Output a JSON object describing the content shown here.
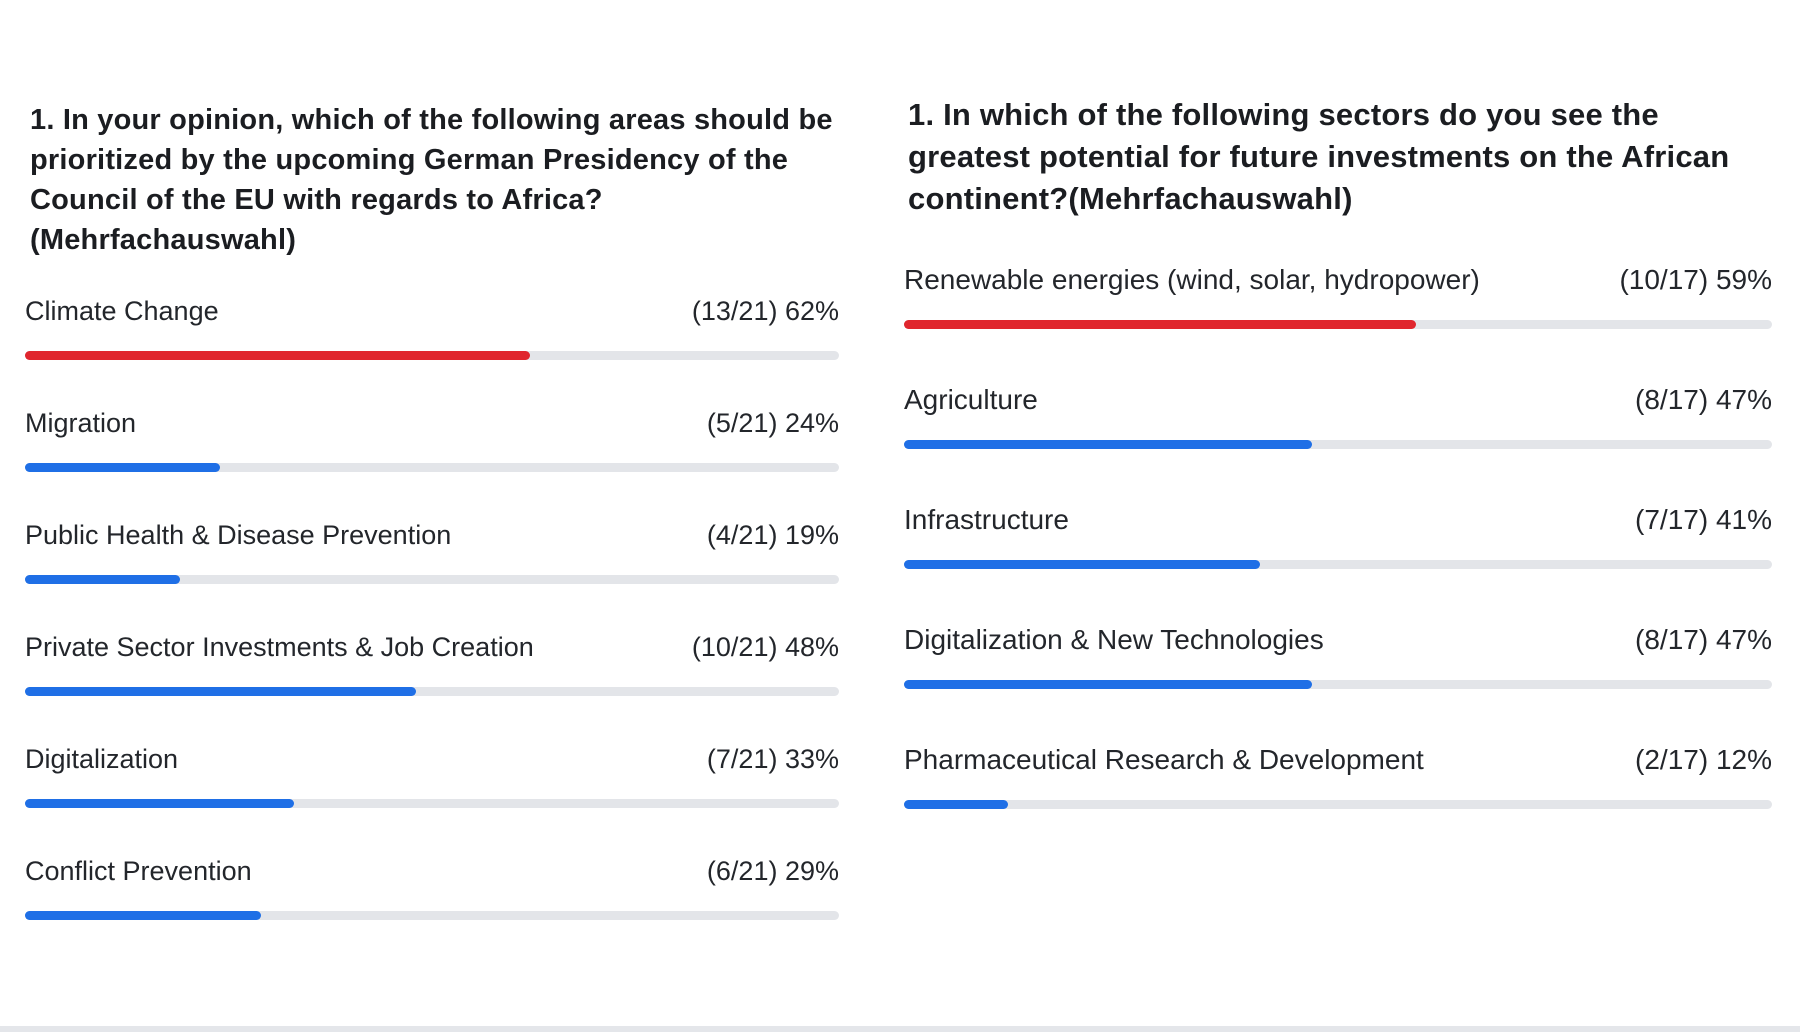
{
  "polls": [
    {
      "question": "1. In your opinion, which of the following areas should be prioritized by the upcoming German Presidency of the Council of the EU with regards to Africa?(Mehrfachauswahl)",
      "options": [
        {
          "label": "Climate Change",
          "result": "(13/21) 62%",
          "fraction": 0.62,
          "leading": true
        },
        {
          "label": "Migration",
          "result": "(5/21) 24%",
          "fraction": 0.24,
          "leading": false
        },
        {
          "label": "Public Health & Disease Prevention",
          "result": "(4/21) 19%",
          "fraction": 0.19,
          "leading": false
        },
        {
          "label": "Private Sector Investments & Job Creation",
          "result": "(10/21) 48%",
          "fraction": 0.48,
          "leading": false
        },
        {
          "label": "Digitalization",
          "result": "(7/21) 33%",
          "fraction": 0.33,
          "leading": false
        },
        {
          "label": "Conflict Prevention",
          "result": "(6/21) 29%",
          "fraction": 0.29,
          "leading": false
        }
      ]
    },
    {
      "question": "1. In which of the following sectors do you see the greatest potential for future investments on the African continent?(Mehrfachauswahl)",
      "options": [
        {
          "label": "Renewable energies (wind, solar, hydropower)",
          "result": "(10/17) 59%",
          "fraction": 0.59,
          "leading": true
        },
        {
          "label": "Agriculture",
          "result": "(8/17) 47%",
          "fraction": 0.47,
          "leading": false
        },
        {
          "label": "Infrastructure",
          "result": "(7/17) 41%",
          "fraction": 0.41,
          "leading": false
        },
        {
          "label": "Digitalization & New Technologies",
          "result": "(8/17) 47%",
          "fraction": 0.47,
          "leading": false
        },
        {
          "label": "Pharmaceutical Research & Development",
          "result": "(2/17) 12%",
          "fraction": 0.12,
          "leading": false
        }
      ]
    }
  ],
  "colors": {
    "leading_bar": "#e0262e",
    "bar": "#1f6fe6",
    "track": "#e3e5e9"
  }
}
